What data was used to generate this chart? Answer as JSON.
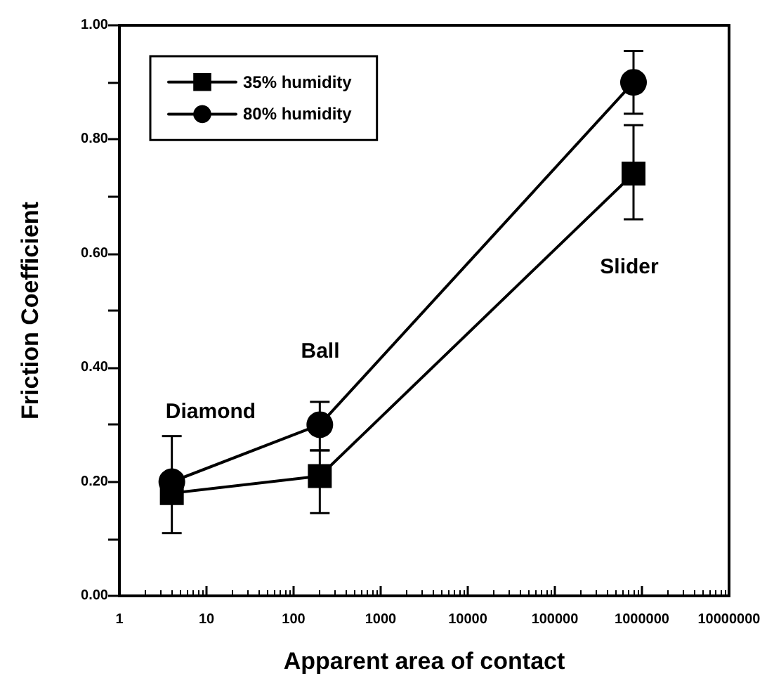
{
  "chart_data": {
    "type": "line",
    "xlabel": "Apparent area of contact",
    "ylabel": "Friction Coefficient",
    "x": [
      4,
      200,
      800000
    ],
    "series": [
      {
        "name": "35% humidity",
        "color": "#000000",
        "marker": "square",
        "values": [
          0.18,
          0.21,
          0.74
        ],
        "errors": [
          [
            0.11,
            0.28
          ],
          [
            0.145,
            0.255
          ],
          [
            0.66,
            0.825
          ]
        ]
      },
      {
        "name": "80% humidity",
        "color": "#000000",
        "marker": "circle",
        "values": [
          0.2,
          0.3,
          0.9
        ],
        "errors": [
          null,
          [
            0.255,
            0.34
          ],
          [
            0.845,
            0.955
          ]
        ]
      }
    ],
    "log": "x",
    "xlim": [
      1,
      10000000
    ],
    "xticks": [
      1,
      10,
      100,
      1000,
      10000,
      100000,
      1000000,
      10000000
    ],
    "ylim": [
      0,
      1
    ],
    "yticks": [
      {
        "value": 0,
        "label": "0.00"
      },
      {
        "value": 0.1,
        "label": null
      },
      {
        "value": 0.2,
        "label": "0.20"
      },
      {
        "value": 0.3,
        "label": null
      },
      {
        "value": 0.4,
        "label": "0.40"
      },
      {
        "value": 0.5,
        "label": null
      },
      {
        "value": 0.6,
        "label": "0.60"
      },
      {
        "value": 0.7,
        "label": null
      },
      {
        "value": 0.8,
        "label": "0.80"
      },
      {
        "value": 0.9,
        "label": null
      },
      {
        "value": 1,
        "label": "1.00"
      }
    ],
    "annotations": [
      "Diamond",
      "Ball",
      "Slider"
    ],
    "legend": "top left",
    "grid": false,
    "line_style": "solid"
  }
}
